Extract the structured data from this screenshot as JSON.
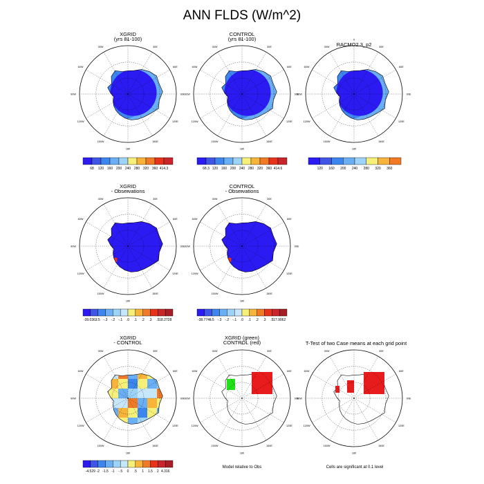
{
  "title": "ANN FLDS (W/m^2)",
  "panels": [
    {
      "t1": "XGRID",
      "t2": "(yrs 81-100)"
    },
    {
      "t1": "CONTROL",
      "t2": "(yrs 81-100)"
    },
    {
      "t1": "RACMO2.3_p2",
      "t2": ""
    },
    {
      "t1": "XGRID",
      "t2": "- Observations"
    },
    {
      "t1": "CONTROL",
      "t2": "- Observations"
    },
    {
      "t1": "XGRID",
      "t2": "- CONTROL"
    },
    {
      "t1": "XGRID (green)",
      "t2": "CONTROL (red)"
    },
    {
      "t1": "T-Test of two Case means at each grid point",
      "t2": ""
    }
  ],
  "notes": [
    "Model relative to Obs",
    "Cells are significant at 0.1 level"
  ],
  "lon_labels": [
    "0",
    "30E",
    "60E",
    "90E",
    "120E",
    "150E",
    "180",
    "150W",
    "120W",
    "90W",
    "60W",
    "30W"
  ],
  "colors": {
    "abs": [
      "#2b1bf2",
      "#3f55e6",
      "#3d86ee",
      "#6aaff4",
      "#9ed3f8",
      "#f6f07a",
      "#f8b43a",
      "#f07a26",
      "#e8331c",
      "#c8262a"
    ],
    "diff": [
      "#2b1bf2",
      "#3f55e6",
      "#3d86ee",
      "#6aaff4",
      "#9ed3f8",
      "#c6e6fa",
      "#f6f07a",
      "#f8b43a",
      "#f07a26",
      "#e8331c",
      "#c8262a",
      "#a61e26"
    ],
    "sig_red": "#e81c1c",
    "sig_green": "#22e01c"
  },
  "chart_data": [
    {
      "type": "heatmap",
      "name": "xgrid",
      "colorbar": [
        "68",
        "120",
        "160",
        "200",
        "240",
        "280",
        "320",
        "360",
        "414.3"
      ]
    },
    {
      "type": "heatmap",
      "name": "control",
      "colorbar": [
        "68.3",
        "120",
        "160",
        "200",
        "240",
        "280",
        "320",
        "360",
        "414.6"
      ]
    },
    {
      "type": "heatmap",
      "name": "racmo",
      "colorbar": [
        "120",
        "160",
        "200",
        "240",
        "280",
        "320",
        "360"
      ]
    },
    {
      "type": "heatmap",
      "name": "xgrid-obs",
      "colorbar": [
        "-39.0362",
        "-.5",
        "-.3",
        "-.2",
        "-.1",
        ".0",
        ".1",
        ".2",
        ".3",
        ".5",
        "18.2728"
      ]
    },
    {
      "type": "heatmap",
      "name": "control-obs",
      "colorbar": [
        "-38.7746",
        "-.5",
        "-.3",
        "-.2",
        "-.1",
        ".0",
        ".1",
        ".2",
        ".3",
        ".5",
        "17.9062"
      ]
    },
    {
      "type": "heatmap",
      "name": "xgrid-control",
      "colorbar": [
        "-4.529",
        "-2",
        "-1.5",
        "-1",
        "-.5",
        "0",
        ".5",
        "1",
        "1.5",
        "2",
        "4.316"
      ]
    },
    {
      "type": "heatmap",
      "name": "model-vs-obs",
      "colorbar": []
    },
    {
      "type": "heatmap",
      "name": "ttest",
      "colorbar": []
    }
  ]
}
